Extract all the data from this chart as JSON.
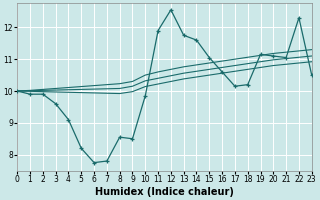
{
  "xlabel": "Humidex (Indice chaleur)",
  "ylabel": "",
  "bg_color": "#cce8e8",
  "grid_color": "#ffffff",
  "line_color": "#1a6b6b",
  "x": [
    0,
    1,
    2,
    3,
    4,
    5,
    6,
    7,
    8,
    9,
    10,
    11,
    12,
    13,
    14,
    15,
    16,
    17,
    18,
    19,
    20,
    21,
    22,
    23
  ],
  "y_main": [
    10.0,
    9.9,
    9.9,
    9.6,
    9.1,
    8.2,
    7.75,
    7.8,
    8.55,
    8.5,
    9.85,
    11.9,
    12.55,
    11.75,
    11.6,
    11.05,
    10.6,
    10.15,
    10.2,
    11.15,
    11.1,
    11.05,
    12.3,
    10.5
  ],
  "y_upper": [
    10.0,
    10.02,
    10.05,
    10.08,
    10.11,
    10.14,
    10.17,
    10.2,
    10.23,
    10.3,
    10.5,
    10.6,
    10.68,
    10.76,
    10.82,
    10.88,
    10.94,
    11.0,
    11.06,
    11.12,
    11.18,
    11.22,
    11.26,
    11.3
  ],
  "y_mid": [
    10.0,
    10.01,
    10.02,
    10.03,
    10.04,
    10.05,
    10.06,
    10.07,
    10.08,
    10.15,
    10.32,
    10.4,
    10.48,
    10.56,
    10.62,
    10.68,
    10.74,
    10.8,
    10.86,
    10.92,
    10.98,
    11.02,
    11.06,
    11.1
  ],
  "y_lower": [
    10.0,
    9.99,
    9.98,
    9.97,
    9.96,
    9.95,
    9.94,
    9.93,
    9.92,
    9.98,
    10.14,
    10.22,
    10.3,
    10.38,
    10.44,
    10.5,
    10.56,
    10.62,
    10.68,
    10.74,
    10.8,
    10.84,
    10.88,
    10.92
  ],
  "xlim": [
    0,
    23
  ],
  "ylim": [
    7.5,
    12.75
  ],
  "yticks": [
    8,
    9,
    10,
    11,
    12
  ],
  "xticks": [
    0,
    1,
    2,
    3,
    4,
    5,
    6,
    7,
    8,
    9,
    10,
    11,
    12,
    13,
    14,
    15,
    16,
    17,
    18,
    19,
    20,
    21,
    22,
    23
  ],
  "tick_fontsize": 5.5,
  "axis_fontsize": 7
}
